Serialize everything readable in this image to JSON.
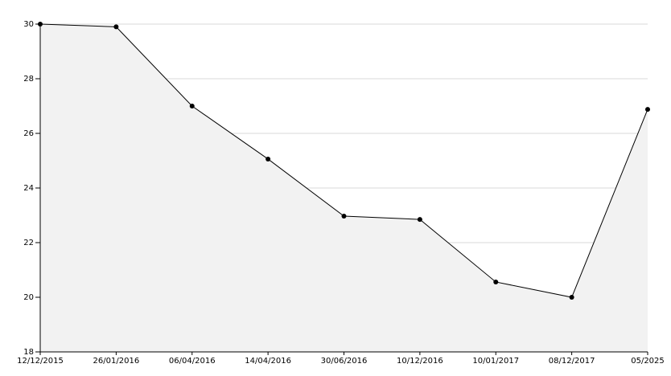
{
  "chart_data": {
    "type": "area",
    "categories": [
      "12/12/2015",
      "26/01/2016",
      "06/04/2016",
      "14/04/2016",
      "30/06/2016",
      "10/12/2016",
      "10/01/2017",
      "08/12/2017",
      "05/2025"
    ],
    "values": [
      30,
      29.9,
      27,
      25.06,
      22.97,
      22.85,
      20.56,
      20,
      26.88
    ],
    "color": "#000000",
    "fill": "#f2f2f2",
    "ylim": [
      18,
      30
    ],
    "yticks": [
      18,
      20,
      22,
      24,
      26,
      28,
      30
    ],
    "grid": true
  }
}
